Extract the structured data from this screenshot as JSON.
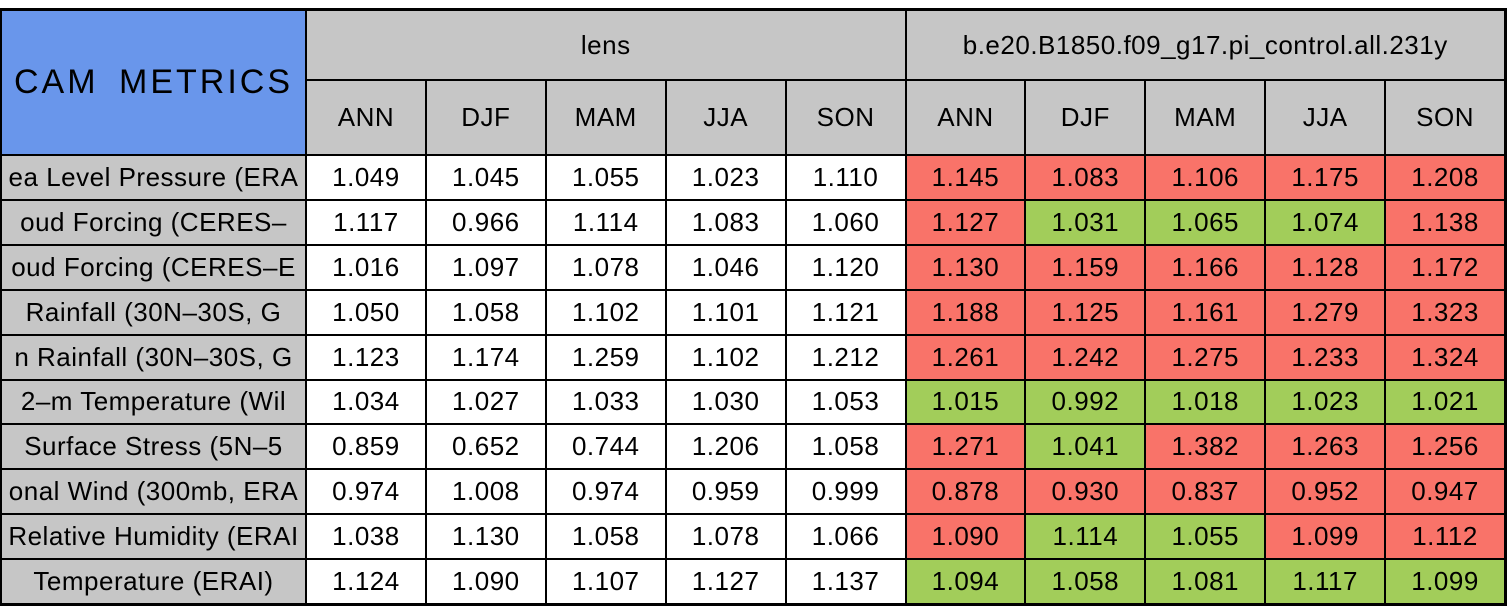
{
  "chart_data": {
    "type": "table",
    "title": "CAM METRICS",
    "column_groups": [
      "lens",
      "b.e20.B1850.f09_g17.pi_control.all.231y"
    ],
    "season_columns": [
      "ANN",
      "DJF",
      "MAM",
      "JJA",
      "SON"
    ],
    "rows": [
      {
        "label": "ea Level Pressure (ERA",
        "lens": [
          "1.049",
          "1.045",
          "1.055",
          "1.023",
          "1.110"
        ],
        "control": [
          "1.145",
          "1.083",
          "1.106",
          "1.175",
          "1.208"
        ],
        "control_cell_colors": [
          "red",
          "red",
          "red",
          "red",
          "red"
        ]
      },
      {
        "label": "oud Forcing (CERES–",
        "lens": [
          "1.117",
          "0.966",
          "1.114",
          "1.083",
          "1.060"
        ],
        "control": [
          "1.127",
          "1.031",
          "1.065",
          "1.074",
          "1.138"
        ],
        "control_cell_colors": [
          "red",
          "green",
          "green",
          "green",
          "red"
        ]
      },
      {
        "label": "oud Forcing (CERES–E",
        "lens": [
          "1.016",
          "1.097",
          "1.078",
          "1.046",
          "1.120"
        ],
        "control": [
          "1.130",
          "1.159",
          "1.166",
          "1.128",
          "1.172"
        ],
        "control_cell_colors": [
          "red",
          "red",
          "red",
          "red",
          "red"
        ]
      },
      {
        "label": "Rainfall (30N–30S, G",
        "lens": [
          "1.050",
          "1.058",
          "1.102",
          "1.101",
          "1.121"
        ],
        "control": [
          "1.188",
          "1.125",
          "1.161",
          "1.279",
          "1.323"
        ],
        "control_cell_colors": [
          "red",
          "red",
          "red",
          "red",
          "red"
        ]
      },
      {
        "label": "n Rainfall (30N–30S, G",
        "lens": [
          "1.123",
          "1.174",
          "1.259",
          "1.102",
          "1.212"
        ],
        "control": [
          "1.261",
          "1.242",
          "1.275",
          "1.233",
          "1.324"
        ],
        "control_cell_colors": [
          "red",
          "red",
          "red",
          "red",
          "red"
        ]
      },
      {
        "label": "2–m Temperature (Wil",
        "lens": [
          "1.034",
          "1.027",
          "1.033",
          "1.030",
          "1.053"
        ],
        "control": [
          "1.015",
          "0.992",
          "1.018",
          "1.023",
          "1.021"
        ],
        "control_cell_colors": [
          "green",
          "green",
          "green",
          "green",
          "green"
        ]
      },
      {
        "label": "Surface Stress (5N–5",
        "lens": [
          "0.859",
          "0.652",
          "0.744",
          "1.206",
          "1.058"
        ],
        "control": [
          "1.271",
          "1.041",
          "1.382",
          "1.263",
          "1.256"
        ],
        "control_cell_colors": [
          "red",
          "green",
          "red",
          "red",
          "red"
        ]
      },
      {
        "label": "onal Wind (300mb, ERA",
        "lens": [
          "0.974",
          "1.008",
          "0.974",
          "0.959",
          "0.999"
        ],
        "control": [
          "0.878",
          "0.930",
          "0.837",
          "0.952",
          "0.947"
        ],
        "control_cell_colors": [
          "red",
          "red",
          "red",
          "red",
          "red"
        ]
      },
      {
        "label": "Relative Humidity (ERAI",
        "lens": [
          "1.038",
          "1.130",
          "1.058",
          "1.078",
          "1.066"
        ],
        "control": [
          "1.090",
          "1.114",
          "1.055",
          "1.099",
          "1.112"
        ],
        "control_cell_colors": [
          "red",
          "green",
          "green",
          "red",
          "red"
        ]
      },
      {
        "label": "Temperature (ERAI)",
        "lens": [
          "1.124",
          "1.090",
          "1.107",
          "1.127",
          "1.137"
        ],
        "control": [
          "1.094",
          "1.058",
          "1.081",
          "1.117",
          "1.099"
        ],
        "control_cell_colors": [
          "green",
          "green",
          "green",
          "green",
          "green"
        ]
      }
    ]
  },
  "colors": {
    "title_blue": "#6996EB",
    "header_gray": "#C6C6C6",
    "cell_red": "#F97369",
    "cell_green": "#A2CD5A",
    "lens_cell_white": "#FFFFFF",
    "border_black": "#000000"
  }
}
